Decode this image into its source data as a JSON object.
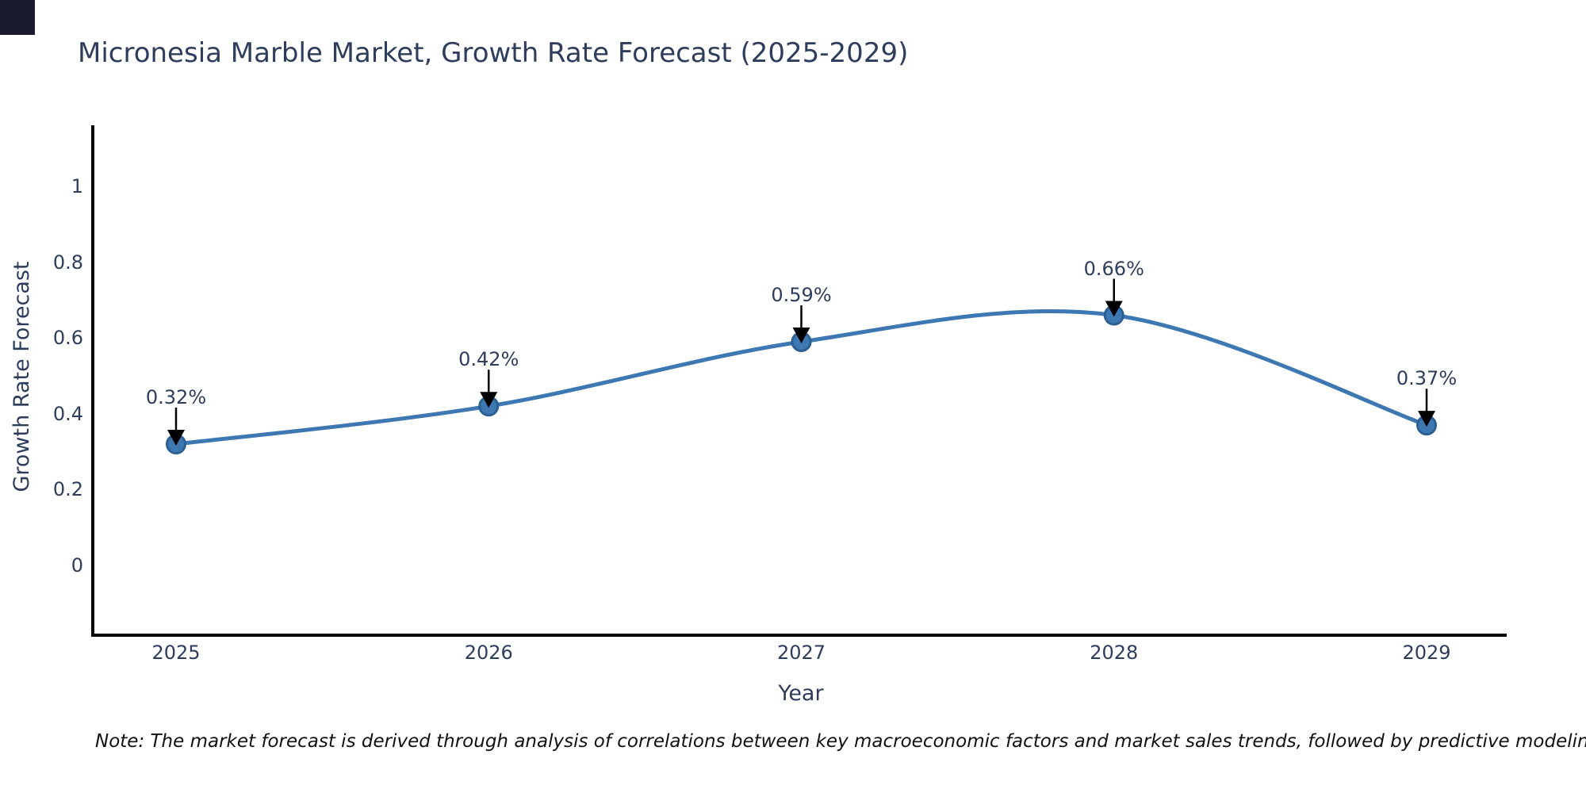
{
  "page": {
    "title": "Micronesia Marble Market, Growth Rate Forecast (2025-2029)",
    "note": "Note: The market forecast is derived through analysis of correlations between key macroeconomic factors and market sales trends, followed by predictive modeling to project future sales",
    "background_color": "#ffffff",
    "corner_square_color": "#1a1a2e"
  },
  "chart_data": {
    "type": "line",
    "title": "Micronesia Marble Market, Growth Rate Forecast (2025-2029)",
    "xlabel": "Year",
    "ylabel": "Growth Rate Forecast",
    "categories": [
      2025,
      2026,
      2027,
      2028,
      2029
    ],
    "series": [
      {
        "name": "Growth Rate Forecast",
        "values": [
          0.32,
          0.42,
          0.59,
          0.66,
          0.37
        ]
      }
    ],
    "point_labels": [
      "0.32%",
      "0.42%",
      "0.59%",
      "0.66%",
      "0.37%"
    ],
    "ytick_values": [
      0,
      0.2,
      0.4,
      0.6,
      0.8,
      1
    ],
    "ytick_labels": [
      "0",
      "0.2",
      "0.4",
      "0.6",
      "0.8",
      "1"
    ],
    "ylim": [
      -0.185,
      1.155
    ],
    "grid": false,
    "legend_position": "none",
    "curve_style": "smooth-spline",
    "line_color": "#3e78b2",
    "marker_color": "#3e78b2",
    "marker_edge_color": "#2c6092",
    "axis_color": "#000000",
    "text_color": "#2e3d5c",
    "annotation_arrow_color": "#000000",
    "note_color": "#111111"
  }
}
